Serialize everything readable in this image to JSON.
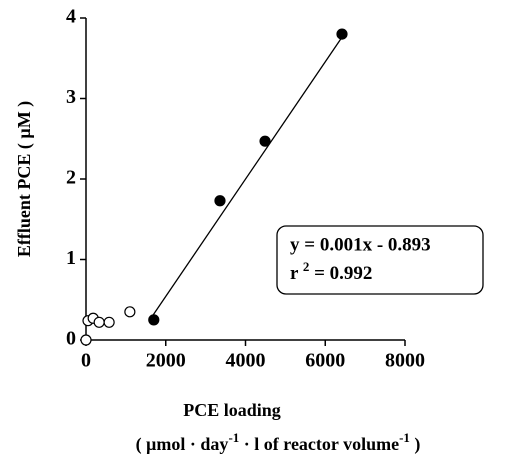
{
  "chart_data": {
    "type": "scatter",
    "y_label": "Effluent PCE ( µM )",
    "x_label": "PCE loading",
    "x_label_units": [
      "( µmol · day",
      "-1",
      " · l of reactor volume",
      "-1",
      " )"
    ],
    "xlim": [
      0,
      8000
    ],
    "xticks": [
      0,
      2000,
      4000,
      6000,
      8000
    ],
    "ylim": [
      0,
      4
    ],
    "yticks": [
      0,
      1,
      2,
      3,
      4
    ],
    "series": [
      {
        "marker": "filled",
        "color": "#000000",
        "x": [
          1700,
          3360,
          4490,
          6420
        ],
        "values": [
          0.25,
          1.73,
          2.47,
          3.8
        ]
      },
      {
        "marker": "open",
        "color": "#000000",
        "x": [
          0,
          50,
          180,
          330,
          580,
          1100
        ],
        "values": [
          0,
          0.24,
          0.27,
          0.22,
          0.22,
          0.35
        ]
      }
    ],
    "fit_line": {
      "x": [
        1600,
        6500
      ],
      "values": [
        0.25,
        3.82
      ]
    },
    "annotation": {
      "equation": "y = 0.001x - 0.893",
      "r2": [
        "r ",
        "2",
        " = 0.992"
      ]
    }
  }
}
